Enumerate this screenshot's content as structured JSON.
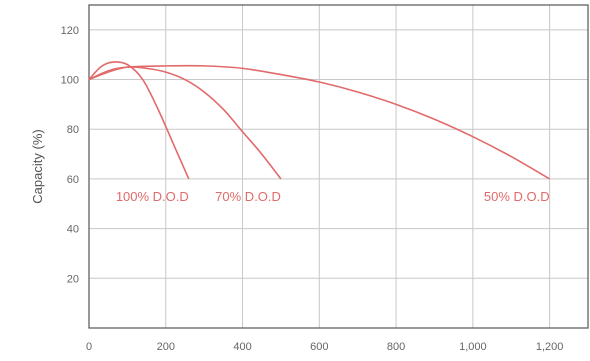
{
  "chart_data": {
    "type": "line",
    "title": "",
    "xlabel": "",
    "ylabel": "Capacity (%)",
    "xlim": [
      0,
      1300
    ],
    "ylim": [
      0,
      130
    ],
    "x_ticks": [
      0,
      200,
      400,
      600,
      800,
      1000,
      1200
    ],
    "x_tick_labels": [
      "0",
      "200",
      "400",
      "600",
      "800",
      "1,000",
      "1,200"
    ],
    "y_ticks": [
      20,
      40,
      60,
      80,
      100,
      120
    ],
    "y_tick_labels": [
      "20",
      "40",
      "60",
      "80",
      "100",
      "120"
    ],
    "grid": true,
    "legend": "none",
    "colors": {
      "series": "#e26a6a",
      "grid": "#c8c8c8",
      "frame": "#555555",
      "tick_text": "#666666",
      "axis_title": "#555555"
    },
    "series": [
      {
        "name": "100% D.O.D",
        "x": [
          0,
          30,
          60,
          100,
          140,
          180,
          220,
          260
        ],
        "y": [
          100,
          105,
          107,
          106,
          100,
          88,
          74,
          60
        ]
      },
      {
        "name": "70% D.O.D",
        "x": [
          0,
          50,
          100,
          150,
          200,
          250,
          300,
          350,
          400,
          450,
          500
        ],
        "y": [
          100,
          103,
          105,
          104.5,
          103,
          100,
          95,
          88,
          79,
          70,
          60
        ]
      },
      {
        "name": "50% D.O.D",
        "x": [
          0,
          50,
          100,
          200,
          300,
          400,
          500,
          600,
          700,
          800,
          900,
          1000,
          1100,
          1200
        ],
        "y": [
          100,
          103.5,
          105,
          105.5,
          105.5,
          104.5,
          102,
          99,
          95,
          90,
          84,
          77,
          69,
          60
        ]
      }
    ]
  }
}
